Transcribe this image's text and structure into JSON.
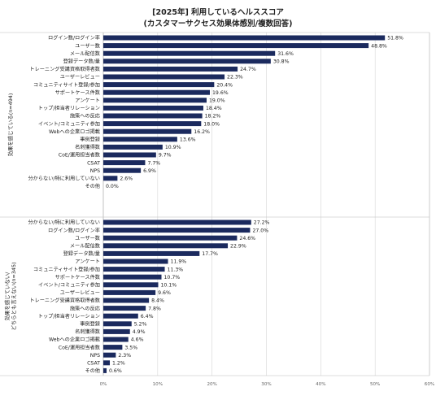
{
  "title": "[2025年] 利用しているヘルススコア",
  "subtitle": "(カスタマーサクセス効果体感別/複数回答)",
  "chart_data": {
    "type": "bar",
    "orientation": "horizontal",
    "title": "[2025年] 利用しているヘルススコア",
    "subtitle": "(カスタマーサクセス効果体感別/複数回答)",
    "xlim": [
      0,
      60
    ],
    "x_ticks": [
      "0%",
      "10%",
      "20%",
      "30%",
      "40%",
      "50%",
      "60%"
    ],
    "value_suffix": "%",
    "bar_color": "#1b2a5e",
    "grid": true,
    "groups": [
      {
        "label": "効果を感じている (n=494)",
        "label_lines": [
          "効果を感じている(n=494)"
        ],
        "categories": [
          "ログイン数/ログイン率",
          "ユーザー数",
          "メール配信数",
          "登録データ数/量",
          "トレーニング受講資格取得者数",
          "ユーザーレビュー",
          "コミュニティサイト登録/参加",
          "サポートケース件数",
          "アンケート",
          "トップ/担当者リレーション",
          "施策への反応",
          "イベント/コミュニティ参加",
          "Webへの企業ロゴ掲載",
          "事例登録",
          "名刺獲得数",
          "CoE/運用担当者数",
          "CSAT",
          "NPS",
          "分からない/特に利用していない",
          "その他"
        ],
        "values": [
          51.8,
          48.8,
          31.6,
          30.8,
          24.7,
          22.3,
          20.4,
          19.6,
          19.0,
          18.4,
          18.2,
          18.0,
          16.2,
          13.6,
          10.9,
          9.7,
          7.7,
          6.9,
          2.6,
          0.0
        ]
      },
      {
        "label": "効果を感じていない/どちらとも言えない (n=345)",
        "label_lines": [
          "効果を感じていない/",
          "どちらとも言えない(n=345)"
        ],
        "categories": [
          "分からない/特に利用していない",
          "ログイン数/ログイン率",
          "ユーザー数",
          "メール配信数",
          "登録データ数/量",
          "アンケート",
          "コミュニティサイト登録/参加",
          "サポートケース件数",
          "イベント/コミュニティ参加",
          "ユーザーレビュー",
          "トレーニング受講資格取得者数",
          "施策への反応",
          "トップ/担当者リレーション",
          "事例登録",
          "名刺獲得数",
          "Webへの企業ロゴ掲載",
          "CoE/運用担当者数",
          "NPS",
          "CSAT",
          "その他"
        ],
        "values": [
          27.2,
          27.0,
          24.6,
          22.9,
          17.7,
          11.9,
          11.3,
          10.7,
          10.1,
          9.6,
          8.4,
          7.8,
          6.4,
          5.2,
          4.9,
          4.6,
          3.5,
          2.3,
          1.2,
          0.6
        ]
      }
    ]
  }
}
